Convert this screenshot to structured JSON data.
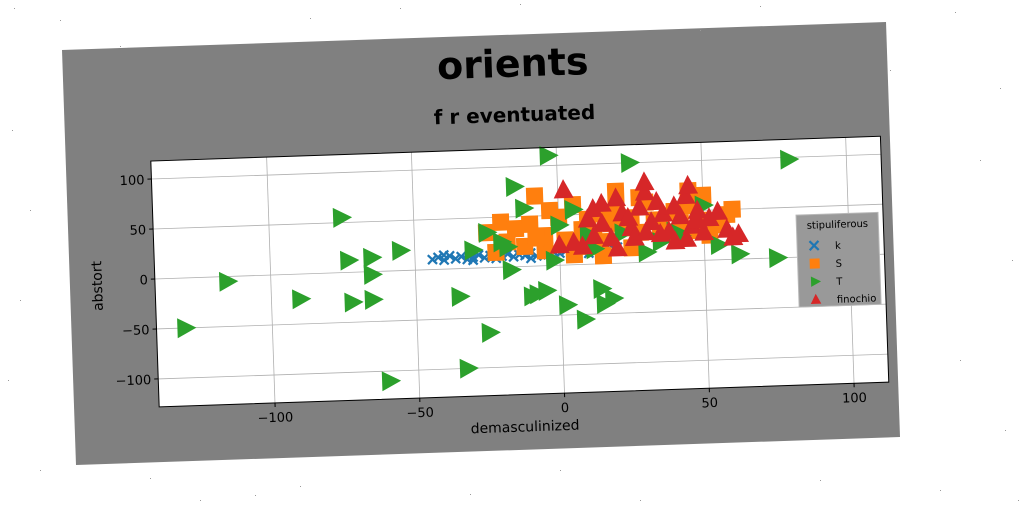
{
  "chart_data": {
    "type": "scatter",
    "title": "orients",
    "subtitle": "f r eventuated",
    "xlabel": "demasculinized",
    "ylabel": "abstort",
    "xlim": [
      -140,
      112
    ],
    "ylim": [
      -128,
      118
    ],
    "xticks": [
      -100,
      -50,
      0,
      50,
      100
    ],
    "yticks": [
      -100,
      -50,
      0,
      50,
      100
    ],
    "xtick_labels": [
      "−100",
      "−50",
      "0",
      "50",
      "100"
    ],
    "ytick_labels": [
      "−100",
      "−50",
      "0",
      "50",
      "100"
    ],
    "grid": true,
    "legend_title": "stipuliferous",
    "legend_position": "right",
    "series": [
      {
        "name": "k",
        "marker": "x",
        "color": "#1f77b4",
        "points": [
          [
            -44,
            10
          ],
          [
            -42,
            12
          ],
          [
            -40,
            9
          ],
          [
            -38,
            13
          ],
          [
            -36,
            10
          ],
          [
            -34,
            12
          ],
          [
            -32,
            9
          ],
          [
            -30,
            11
          ],
          [
            -28,
            13
          ],
          [
            -26,
            10
          ],
          [
            -24,
            12
          ],
          [
            -22,
            9
          ],
          [
            -20,
            11
          ],
          [
            -18,
            13
          ],
          [
            -16,
            10
          ],
          [
            -14,
            12
          ],
          [
            -12,
            11
          ],
          [
            -10,
            13
          ],
          [
            -8,
            10
          ],
          [
            -6,
            12
          ],
          [
            -4,
            11
          ],
          [
            -2,
            13
          ],
          [
            0,
            12
          ],
          [
            2,
            14
          ],
          [
            4,
            12
          ],
          [
            6,
            14
          ],
          [
            8,
            13
          ],
          [
            10,
            15
          ],
          [
            12,
            14
          ],
          [
            14,
            16
          ],
          [
            16,
            15
          ],
          [
            18,
            17
          ],
          [
            20,
            16
          ],
          [
            -40,
            14
          ],
          [
            -30,
            8
          ],
          [
            -20,
            15
          ],
          [
            -10,
            8
          ],
          [
            0,
            16
          ],
          [
            10,
            11
          ]
        ]
      },
      {
        "name": "S",
        "marker": "s",
        "color": "#ff7f0e",
        "points": [
          [
            -20,
            45
          ],
          [
            -15,
            38
          ],
          [
            -10,
            42
          ],
          [
            -5,
            30
          ],
          [
            -8,
            70
          ],
          [
            -3,
            55
          ],
          [
            0,
            48
          ],
          [
            5,
            60
          ],
          [
            8,
            35
          ],
          [
            10,
            45
          ],
          [
            12,
            30
          ],
          [
            15,
            50
          ],
          [
            18,
            40
          ],
          [
            20,
            55
          ],
          [
            22,
            35
          ],
          [
            25,
            45
          ],
          [
            28,
            30
          ],
          [
            30,
            60
          ],
          [
            33,
            42
          ],
          [
            35,
            35
          ],
          [
            38,
            28
          ],
          [
            40,
            50
          ],
          [
            42,
            38
          ],
          [
            45,
            55
          ],
          [
            48,
            30
          ],
          [
            50,
            40
          ],
          [
            52,
            25
          ],
          [
            55,
            35
          ],
          [
            58,
            45
          ],
          [
            60,
            50
          ],
          [
            -25,
            35
          ],
          [
            -18,
            25
          ],
          [
            -12,
            20
          ],
          [
            -5,
            15
          ],
          [
            2,
            25
          ],
          [
            6,
            20
          ],
          [
            10,
            18
          ],
          [
            14,
            22
          ],
          [
            -22,
            15
          ],
          [
            -8,
            28
          ],
          [
            20,
            72
          ],
          [
            28,
            65
          ],
          [
            45,
            70
          ],
          [
            50,
            65
          ],
          [
            5,
            10
          ],
          [
            15,
            8
          ],
          [
            25,
            15
          ]
        ]
      },
      {
        "name": "T",
        "marker": ">",
        "color": "#2ca02c",
        "points": [
          [
            -130,
            -50
          ],
          [
            -115,
            -5
          ],
          [
            -90,
            -25
          ],
          [
            -75,
            55
          ],
          [
            -73,
            12
          ],
          [
            -72,
            -30
          ],
          [
            -65,
            14
          ],
          [
            -65,
            -3
          ],
          [
            -65,
            -28
          ],
          [
            -55,
            20
          ],
          [
            -60,
            -110
          ],
          [
            -35,
            -28
          ],
          [
            -33,
            -100
          ],
          [
            -25,
            -65
          ],
          [
            -25,
            35
          ],
          [
            -20,
            25
          ],
          [
            -17,
            -3
          ],
          [
            -15,
            80
          ],
          [
            -12,
            58
          ],
          [
            -10,
            -30
          ],
          [
            -8,
            -28
          ],
          [
            -5,
            -25
          ],
          [
            -3,
            110
          ],
          [
            -2,
            5
          ],
          [
            0,
            40
          ],
          [
            2,
            -40
          ],
          [
            5,
            55
          ],
          [
            8,
            -55
          ],
          [
            10,
            30
          ],
          [
            12,
            15
          ],
          [
            14,
            -25
          ],
          [
            15,
            -40
          ],
          [
            18,
            -35
          ],
          [
            30,
            10
          ],
          [
            35,
            20
          ],
          [
            40,
            30
          ],
          [
            42,
            25
          ],
          [
            50,
            55
          ],
          [
            55,
            15
          ],
          [
            62,
            5
          ],
          [
            75,
            0
          ],
          [
            80,
            98
          ],
          [
            95,
            -10
          ],
          [
            25,
            100
          ],
          [
            -30,
            18
          ],
          [
            -18,
            20
          ],
          [
            22,
            30
          ]
        ]
      },
      {
        "name": "finochio",
        "marker": "^",
        "color": "#d62728",
        "points": [
          [
            0,
            20
          ],
          [
            2,
            75
          ],
          [
            5,
            22
          ],
          [
            10,
            45
          ],
          [
            12,
            28
          ],
          [
            15,
            40
          ],
          [
            18,
            25
          ],
          [
            20,
            65
          ],
          [
            22,
            50
          ],
          [
            25,
            35
          ],
          [
            28,
            55
          ],
          [
            30,
            70
          ],
          [
            32,
            40
          ],
          [
            34,
            60
          ],
          [
            36,
            48
          ],
          [
            38,
            30
          ],
          [
            40,
            55
          ],
          [
            42,
            45
          ],
          [
            44,
            65
          ],
          [
            45,
            75
          ],
          [
            46,
            35
          ],
          [
            48,
            50
          ],
          [
            50,
            28
          ],
          [
            52,
            42
          ],
          [
            55,
            48
          ],
          [
            58,
            30
          ],
          [
            60,
            22
          ],
          [
            62,
            25
          ],
          [
            26,
            25
          ],
          [
            30,
            30
          ],
          [
            35,
            28
          ],
          [
            15,
            60
          ],
          [
            8,
            18
          ],
          [
            20,
            15
          ],
          [
            40,
            20
          ],
          [
            30,
            80
          ],
          [
            24,
            45
          ],
          [
            12,
            55
          ],
          [
            44,
            22
          ],
          [
            48,
            40
          ]
        ]
      }
    ]
  }
}
